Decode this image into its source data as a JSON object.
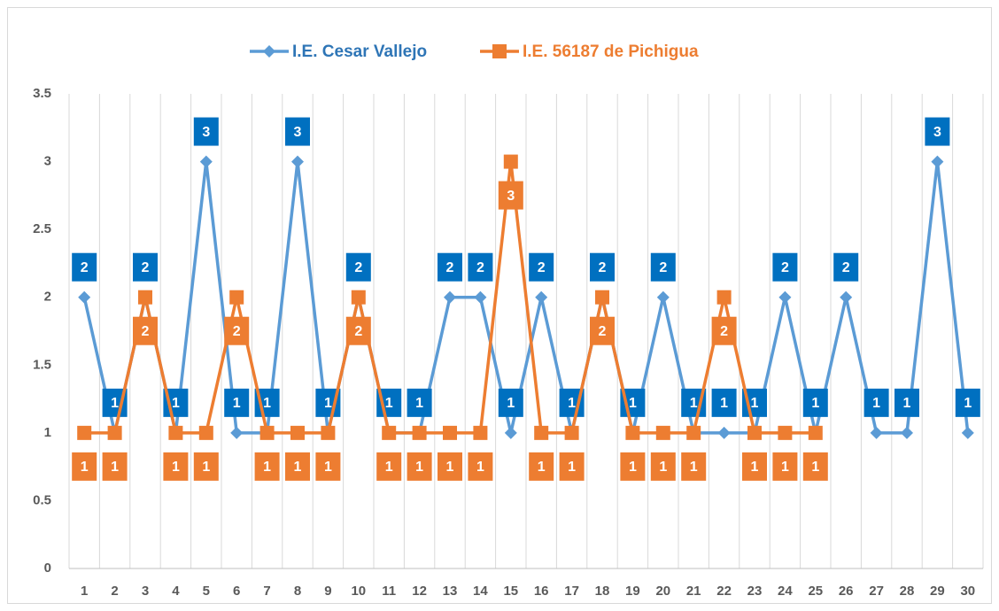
{
  "chart_data": {
    "type": "line",
    "categories": [
      "1",
      "2",
      "3",
      "4",
      "5",
      "6",
      "7",
      "8",
      "9",
      "10",
      "11",
      "12",
      "13",
      "14",
      "15",
      "16",
      "17",
      "18",
      "19",
      "20",
      "21",
      "22",
      "23",
      "24",
      "25",
      "26",
      "27",
      "28",
      "29",
      "30"
    ],
    "series": [
      {
        "name": "I.E. Cesar Vallejo",
        "color": "#5b9bd5",
        "marker": "diamond",
        "values": [
          2,
          1,
          2,
          1,
          3,
          1,
          1,
          3,
          1,
          2,
          1,
          1,
          2,
          2,
          1,
          2,
          1,
          2,
          1,
          2,
          1,
          1,
          1,
          2,
          1,
          2,
          1,
          1,
          3,
          1
        ]
      },
      {
        "name": "I.E. 56187 de Pichigua",
        "color": "#ed7d31",
        "marker": "square",
        "values": [
          1,
          1,
          2,
          1,
          1,
          2,
          1,
          1,
          1,
          2,
          1,
          1,
          1,
          1,
          3,
          1,
          1,
          2,
          1,
          1,
          1,
          2,
          1,
          1,
          1,
          null,
          null,
          null,
          null,
          null
        ]
      }
    ],
    "ylim": [
      0,
      3.5
    ],
    "yticks": [
      0,
      0.5,
      1,
      1.5,
      2,
      2.5,
      3,
      3.5
    ],
    "legend": "top"
  }
}
